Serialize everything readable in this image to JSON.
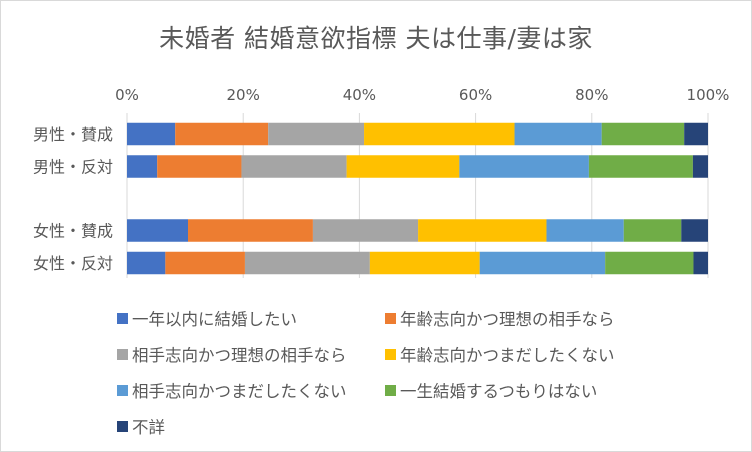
{
  "chart_data": {
    "type": "bar",
    "orientation": "horizontal",
    "stacked": "percent",
    "title": "未婚者 結婚意欲指標 夫は仕事/妻は家",
    "x_ticks": [
      "0%",
      "20%",
      "40%",
      "60%",
      "80%",
      "100%"
    ],
    "xlim": [
      0,
      100
    ],
    "grid": true,
    "legend_position": "bottom",
    "categories": [
      "男性・賛成",
      "男性・反対",
      "女性・賛成",
      "女性・反対"
    ],
    "series": [
      {
        "name": "一年以内に結婚したい",
        "color": "#4472c4",
        "values": [
          8.3,
          5.2,
          10.5,
          6.6
        ]
      },
      {
        "name": "年齢志向かつ理想の相手なら",
        "color": "#ed7d31",
        "values": [
          16.0,
          14.5,
          21.5,
          13.7
        ]
      },
      {
        "name": "相手志向かつ理想の相手なら",
        "color": "#a5a5a5",
        "values": [
          16.5,
          18.1,
          18.1,
          21.5
        ]
      },
      {
        "name": "年齢志向かつまだしたくない",
        "color": "#ffc000",
        "values": [
          25.9,
          19.4,
          22.1,
          18.9
        ]
      },
      {
        "name": "相手志向かつまだしたくない",
        "color": "#5b9bd5",
        "values": [
          15.0,
          22.3,
          13.3,
          21.6
        ]
      },
      {
        "name": "一生結婚するつもりはない",
        "color": "#70ad47",
        "values": [
          14.2,
          17.9,
          9.9,
          15.2
        ]
      },
      {
        "name": "不詳",
        "color": "#264478",
        "values": [
          4.1,
          2.6,
          4.6,
          2.5
        ]
      }
    ]
  }
}
